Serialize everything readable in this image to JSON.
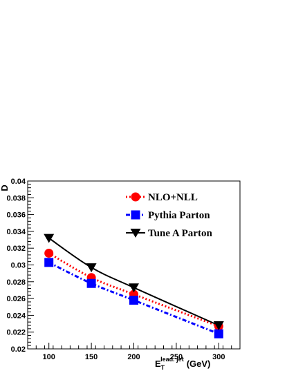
{
  "chart_data": {
    "type": "line",
    "xlabel_main": "E",
    "xlabel_sub": "T",
    "xlabel_sup": "lead. jet",
    "xlabel_unit": "(GeV)",
    "ylabel": "D",
    "xlim": [
      75,
      325
    ],
    "ylim": [
      0.02,
      0.04
    ],
    "x_ticks": [
      100,
      150,
      200,
      250,
      300
    ],
    "y_ticks": [
      0.02,
      0.022,
      0.024,
      0.026,
      0.028,
      0.03,
      0.032,
      0.034,
      0.036,
      0.038,
      0.04
    ],
    "y_tick_labels": [
      "0.02",
      "0.022",
      "0.024",
      "0.026",
      "0.028",
      "0.03",
      "0.032",
      "0.034",
      "0.036",
      "0.038",
      "0.04"
    ],
    "legend_placement": "top-right",
    "series": [
      {
        "name": "NLO+NLL",
        "x": [
          100,
          150,
          200,
          300
        ],
        "y": [
          0.0314,
          0.0285,
          0.0265,
          0.0227
        ],
        "color": "#ff0000",
        "line_style": "dotted",
        "marker": "circle"
      },
      {
        "name": "Pythia Parton",
        "x": [
          100,
          150,
          200,
          300
        ],
        "y": [
          0.0303,
          0.0278,
          0.0258,
          0.0218
        ],
        "color": "#0000ff",
        "line_style": "dash-dot",
        "marker": "square"
      },
      {
        "name": "Tune A Parton",
        "x": [
          100,
          150,
          200,
          300
        ],
        "y": [
          0.0332,
          0.0297,
          0.0273,
          0.0228
        ],
        "color": "#000000",
        "line_style": "solid",
        "marker": "triangle-down"
      }
    ]
  }
}
